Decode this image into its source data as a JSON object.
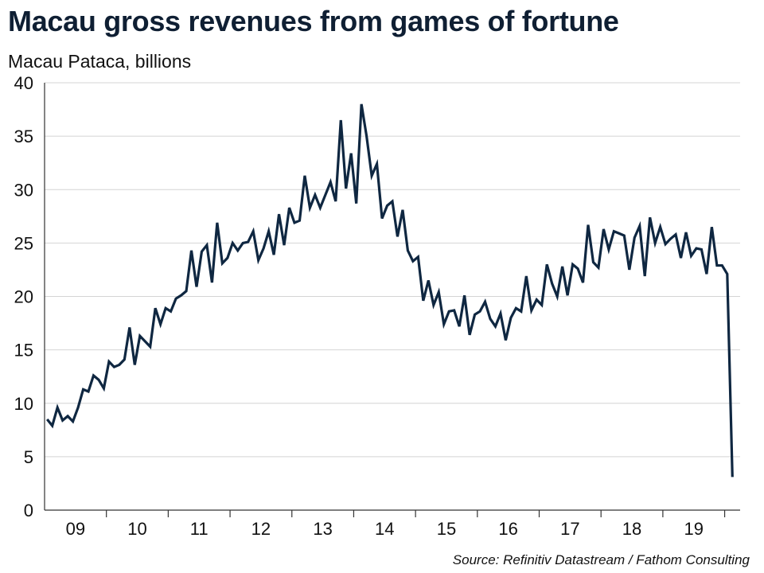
{
  "title": "Macau gross revenues from games of fortune",
  "subtitle": "Macau Pataca, billions",
  "source": "Source: Refinitiv Datastream / Fathom Consulting",
  "colors": {
    "line": "#0f2741",
    "grid": "#d4d4d4",
    "axis": "#333333"
  },
  "chart_data": {
    "type": "line",
    "title": "Macau gross revenues from games of fortune",
    "ylabel": "Macau Pataca, billions",
    "xlabel": "",
    "ylim": [
      0,
      40
    ],
    "y_ticks": [
      0,
      5,
      10,
      15,
      20,
      25,
      30,
      35,
      40
    ],
    "x_range": [
      2009.0,
      2020.25
    ],
    "x_ticks": [
      {
        "label": "09",
        "year": 2009
      },
      {
        "label": "11",
        "year": 2011
      },
      {
        "label": "12",
        "year": 2012
      },
      {
        "label": "13",
        "year": 2013
      },
      {
        "label": "14",
        "year": 2014
      },
      {
        "label": "15",
        "year": 2015
      },
      {
        "label": "16",
        "year": 2016
      },
      {
        "label": "17",
        "year": 2017
      },
      {
        "label": "18",
        "year": 2018
      },
      {
        "label": "19",
        "year": 2019
      }
    ],
    "x_tick_labels_all": [
      "09",
      "10",
      "11",
      "12",
      "13",
      "14",
      "15",
      "16",
      "17",
      "18",
      "19"
    ],
    "grid": true,
    "legend": "none",
    "series": [
      {
        "start": "2009-01",
        "frequency": "monthly",
        "values": [
          8.5,
          7.9,
          9.6,
          8.4,
          8.8,
          8.3,
          9.6,
          11.3,
          11.1,
          12.6,
          12.2,
          11.4,
          13.9,
          13.4,
          13.6,
          14.1,
          17.1,
          13.6,
          16.3,
          15.8,
          15.3,
          18.9,
          17.4,
          18.9,
          18.6,
          19.8,
          20.1,
          20.5,
          24.3,
          20.9,
          24.2,
          24.8,
          21.3,
          26.9,
          23.1,
          23.6,
          25.0,
          24.3,
          25.0,
          25.1,
          26.1,
          23.4,
          24.5,
          26.1,
          23.9,
          27.7,
          24.8,
          28.3,
          26.9,
          27.1,
          31.3,
          28.3,
          29.5,
          28.3,
          29.5,
          30.7,
          28.9,
          36.5,
          30.1,
          33.4,
          28.7,
          38.0,
          35.0,
          31.3,
          32.4,
          27.3,
          28.5,
          28.9,
          25.6,
          28.1,
          24.3,
          23.3,
          23.7,
          19.6,
          21.5,
          19.2,
          20.4,
          17.4,
          18.6,
          18.7,
          17.2,
          20.1,
          16.4,
          18.3,
          18.6,
          19.5,
          17.9,
          17.2,
          18.4,
          15.9,
          18.0,
          18.9,
          18.6,
          21.9,
          18.7,
          19.7,
          19.2,
          23.0,
          21.2,
          20.0,
          22.8,
          20.1,
          23.0,
          22.6,
          21.3,
          26.7,
          23.2,
          22.7,
          26.3,
          24.4,
          26.1,
          25.9,
          25.7,
          22.5,
          25.5,
          26.6,
          21.9,
          27.4,
          25.0,
          26.5,
          24.9,
          25.4,
          25.8,
          23.6,
          26.0,
          23.8,
          24.5,
          24.4,
          22.1,
          26.5,
          22.9,
          22.9,
          22.1,
          3.1
        ]
      }
    ]
  }
}
